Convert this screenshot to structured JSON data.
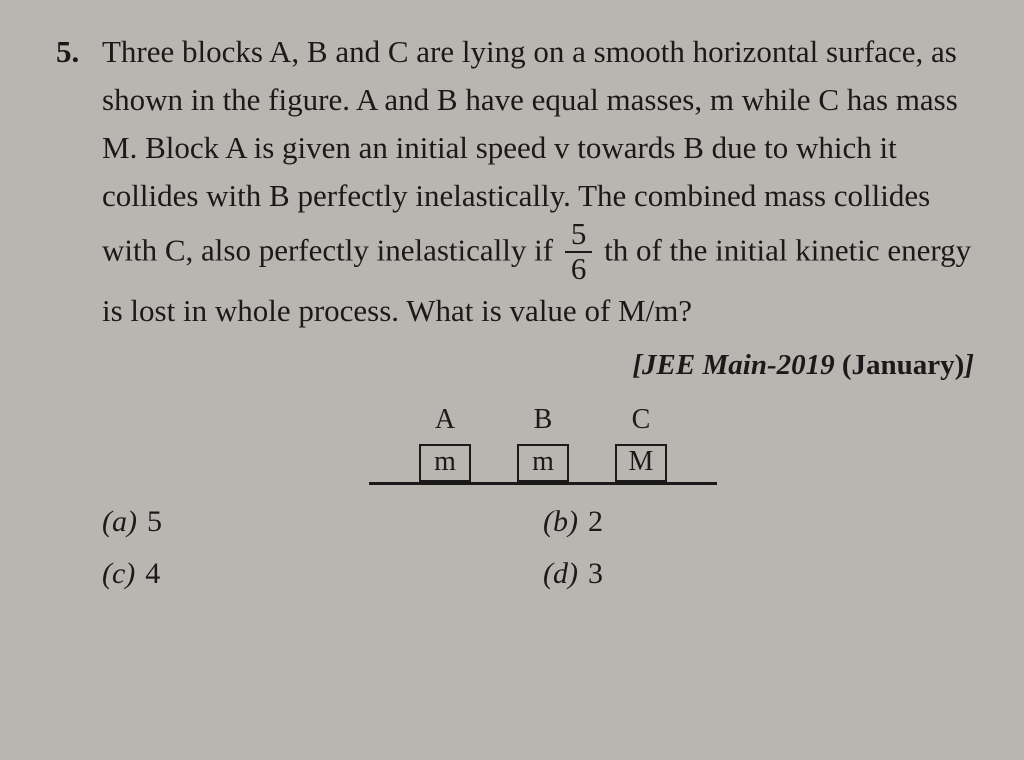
{
  "question": {
    "number": "5.",
    "text_before_fraction": "Three blocks A, B and C are lying on a smooth horizontal surface, as shown in the figure. A and B have equal masses, m while C has mass M. Block A is given an initial speed v towards B due to which it collides with B perfectly inelastically. The combined mass collides with C, also perfectly inelastically if ",
    "fraction": {
      "num": "5",
      "den": "6"
    },
    "text_after_fraction": " th of the initial kinetic energy is lost in whole process. What is value of M/m?"
  },
  "source": {
    "bracket_open": "[",
    "exam": "JEE Main-2019",
    "session": "(January)",
    "bracket_close": "]"
  },
  "diagram": {
    "blocks": [
      {
        "label": "A",
        "mass": "m"
      },
      {
        "label": "B",
        "mass": "m"
      },
      {
        "label": "C",
        "mass": "M"
      }
    ],
    "colors": {
      "line": "#1a1a1a",
      "background": "#b9b6b1"
    }
  },
  "options": {
    "a": {
      "label": "(a)",
      "value": "5"
    },
    "b": {
      "label": "(b)",
      "value": "2"
    },
    "c": {
      "label": "(c)",
      "value": "4"
    },
    "d": {
      "label": "(d)",
      "value": "3"
    }
  }
}
